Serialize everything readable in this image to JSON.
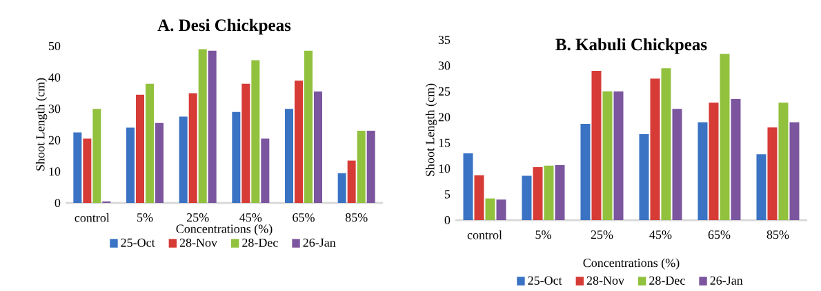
{
  "chart_data": [
    {
      "type": "bar",
      "title": "A. Desi Chickpeas",
      "xlabel": "Concentrations (%)",
      "ylabel": "Shoot Length (cm)",
      "categories": [
        "control",
        "5%",
        "25%",
        "45%",
        "65%",
        "85%"
      ],
      "series": [
        {
          "name": "25-Oct",
          "color": "#3a72c4",
          "values": [
            22.5,
            24,
            27.5,
            29,
            30,
            9.5
          ]
        },
        {
          "name": "28-Nov",
          "color": "#d63b36",
          "values": [
            20.5,
            34.5,
            35,
            38,
            39,
            13.5
          ]
        },
        {
          "name": "28-Dec",
          "color": "#92c13e",
          "values": [
            30,
            38,
            49,
            45.5,
            48.5,
            23
          ]
        },
        {
          "name": "26-Jan",
          "color": "#7b559e",
          "values": [
            0.5,
            25.5,
            48.5,
            20.5,
            35.5,
            23
          ]
        }
      ],
      "ylim": [
        0,
        50
      ],
      "yticks": [
        0,
        10,
        20,
        30,
        40,
        50
      ],
      "legend": "bottom"
    },
    {
      "type": "bar",
      "title": "B. Kabuli Chickpeas",
      "xlabel": "Concentrations (%)",
      "ylabel": "Shoot Length (cm)",
      "categories": [
        "control",
        "5%",
        "25%",
        "45%",
        "65%",
        "85%"
      ],
      "series": [
        {
          "name": "25-Oct",
          "color": "#3a72c4",
          "values": [
            13,
            8.6,
            18.7,
            16.7,
            19,
            12.8
          ]
        },
        {
          "name": "28-Nov",
          "color": "#d63b36",
          "values": [
            8.7,
            10.3,
            29,
            27.5,
            22.8,
            18
          ]
        },
        {
          "name": "28-Dec",
          "color": "#92c13e",
          "values": [
            4.2,
            10.6,
            25,
            29.5,
            32.3,
            22.8
          ]
        },
        {
          "name": "26-Jan",
          "color": "#7b559e",
          "values": [
            4,
            10.7,
            25,
            21.6,
            23.5,
            19
          ]
        }
      ],
      "ylim": [
        0,
        35
      ],
      "yticks": [
        0,
        5,
        10,
        15,
        20,
        25,
        30,
        35
      ],
      "legend": "bottom"
    }
  ]
}
